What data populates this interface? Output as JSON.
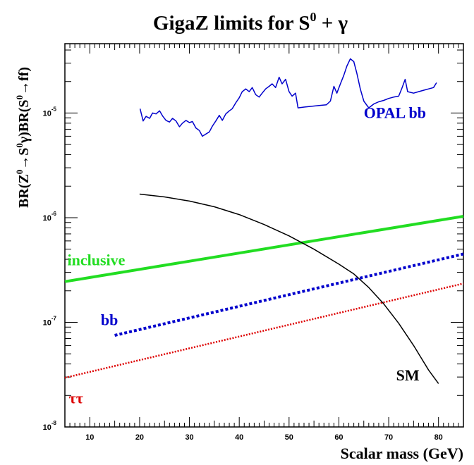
{
  "chart_data": {
    "type": "line",
    "title": "GigaZ limits for S",
    "title_sup": "0",
    "title_tail": " + γ",
    "xlabel": "Scalar mass (GeV)",
    "ylabel_parts": [
      {
        "t": "BR(Z",
        "s": false
      },
      {
        "t": "0",
        "s": true
      },
      {
        "t": "→S",
        "s": false
      },
      {
        "t": "0",
        "s": true
      },
      {
        "t": "γ)BR(S",
        "s": false
      },
      {
        "t": "0",
        "s": true
      },
      {
        "t": "→ff)",
        "s": false
      }
    ],
    "xlim": [
      5,
      85
    ],
    "ylim": [
      1e-08,
      4.6e-05
    ],
    "yscale": "log",
    "grid": false,
    "x_ticks": [
      10,
      20,
      30,
      40,
      50,
      60,
      70,
      80
    ],
    "x_tick_labels": [
      "10",
      "20",
      "30",
      "40",
      "50",
      "60",
      "70",
      "80"
    ],
    "y_ticks": [
      {
        "value": 1e-08,
        "base": "10",
        "exp": "-8"
      },
      {
        "value": 1e-07,
        "base": "10",
        "exp": "-7"
      },
      {
        "value": 1e-06,
        "base": "10",
        "exp": "-6"
      },
      {
        "value": 1e-05,
        "base": "10",
        "exp": "-5"
      }
    ],
    "series": [
      {
        "name": "OPAL bb",
        "color": "#0000cc",
        "dash": "solid",
        "width": 1.5,
        "label_xy": [
          65,
          1e-05
        ],
        "points": [
          [
            20.1,
            1.1e-05
          ],
          [
            20.7,
            8.4e-06
          ],
          [
            21.3,
            9.3e-06
          ],
          [
            22.0,
            8.9e-06
          ],
          [
            22.6,
            1e-05
          ],
          [
            23.3,
            9.8e-06
          ],
          [
            24.0,
            1.05e-05
          ],
          [
            24.6,
            9.4e-06
          ],
          [
            25.3,
            8.5e-06
          ],
          [
            26.0,
            8.2e-06
          ],
          [
            26.6,
            8.9e-06
          ],
          [
            27.3,
            8.4e-06
          ],
          [
            28.0,
            7.4e-06
          ],
          [
            28.6,
            8e-06
          ],
          [
            29.3,
            8.5e-06
          ],
          [
            30.0,
            8.1e-06
          ],
          [
            30.6,
            8.3e-06
          ],
          [
            31.3,
            7.2e-06
          ],
          [
            32.0,
            6.8e-06
          ],
          [
            32.6,
            6e-06
          ],
          [
            33.3,
            6.3e-06
          ],
          [
            34.0,
            6.6e-06
          ],
          [
            34.6,
            7.5e-06
          ],
          [
            35.3,
            8.4e-06
          ],
          [
            36.0,
            9.5e-06
          ],
          [
            36.6,
            8.5e-06
          ],
          [
            37.3,
            9.8e-06
          ],
          [
            38.0,
            1.05e-05
          ],
          [
            38.6,
            1.1e-05
          ],
          [
            39.3,
            1.25e-05
          ],
          [
            40.0,
            1.4e-05
          ],
          [
            40.6,
            1.6e-05
          ],
          [
            41.3,
            1.7e-05
          ],
          [
            42.0,
            1.6e-05
          ],
          [
            42.6,
            1.75e-05
          ],
          [
            43.3,
            1.5e-05
          ],
          [
            44.0,
            1.42e-05
          ],
          [
            44.6,
            1.55e-05
          ],
          [
            45.3,
            1.7e-05
          ],
          [
            46.0,
            1.8e-05
          ],
          [
            46.6,
            1.9e-05
          ],
          [
            47.3,
            1.75e-05
          ],
          [
            48.0,
            2.2e-05
          ],
          [
            48.6,
            1.9e-05
          ],
          [
            49.3,
            2.1e-05
          ],
          [
            50.0,
            1.6e-05
          ],
          [
            50.6,
            1.45e-05
          ],
          [
            51.3,
            1.55e-05
          ],
          [
            51.8,
            1.12e-05
          ],
          [
            53.0,
            1.14e-05
          ],
          [
            54.5,
            1.16e-05
          ],
          [
            56.0,
            1.18e-05
          ],
          [
            57.5,
            1.2e-05
          ],
          [
            58.3,
            1.3e-05
          ],
          [
            59.0,
            1.8e-05
          ],
          [
            59.6,
            1.55e-05
          ],
          [
            60.3,
            1.9e-05
          ],
          [
            61.0,
            2.3e-05
          ],
          [
            61.6,
            2.8e-05
          ],
          [
            62.3,
            3.3e-05
          ],
          [
            63.0,
            3.1e-05
          ],
          [
            63.6,
            2.4e-05
          ],
          [
            64.3,
            1.7e-05
          ],
          [
            65.0,
            1.3e-05
          ],
          [
            66.0,
            1.12e-05
          ],
          [
            67.0,
            1.22e-05
          ],
          [
            68.0,
            1.28e-05
          ],
          [
            69.0,
            1.32e-05
          ],
          [
            70.0,
            1.38e-05
          ],
          [
            71.0,
            1.42e-05
          ],
          [
            72.0,
            1.45e-05
          ],
          [
            72.6,
            1.7e-05
          ],
          [
            73.3,
            2.1e-05
          ],
          [
            73.8,
            1.6e-05
          ],
          [
            75.0,
            1.55e-05
          ],
          [
            76.0,
            1.6e-05
          ],
          [
            77.0,
            1.65e-05
          ],
          [
            78.0,
            1.7e-05
          ],
          [
            79.0,
            1.75e-05
          ],
          [
            79.6,
            1.95e-05
          ]
        ]
      },
      {
        "name": "inclusive",
        "color": "#22dd22",
        "dash": "solid",
        "width": 4,
        "label_xy": [
          5.5,
          3.9e-07
        ],
        "points": [
          [
            5,
            2.45e-07
          ],
          [
            85,
            1.03e-06
          ]
        ]
      },
      {
        "name": "bb",
        "color": "#0000cc",
        "dash": "dot",
        "width": 4,
        "label_xy": [
          12.2,
          1.05e-07
        ],
        "points": [
          [
            15,
            7.5e-08
          ],
          [
            85,
            4.5e-07
          ]
        ]
      },
      {
        "name": "ττ",
        "color": "#dd0000",
        "dash": "dotfine",
        "width": 2.5,
        "label_xy": [
          5.8,
          1.87e-08
        ],
        "points": [
          [
            5,
            2.95e-08
          ],
          [
            85,
            2.35e-07
          ]
        ]
      },
      {
        "name": "SM",
        "color": "#000000",
        "dash": "solid",
        "width": 1.5,
        "label_xy": [
          71.5,
          3.1e-08
        ],
        "points": [
          [
            20,
            1.68e-06
          ],
          [
            25,
            1.58e-06
          ],
          [
            30,
            1.44e-06
          ],
          [
            35,
            1.27e-06
          ],
          [
            40,
            1.07e-06
          ],
          [
            45,
            8.6e-07
          ],
          [
            50,
            6.7e-07
          ],
          [
            55,
            5e-07
          ],
          [
            60,
            3.6e-07
          ],
          [
            63,
            2.9e-07
          ],
          [
            66,
            2.15e-07
          ],
          [
            69,
            1.5e-07
          ],
          [
            72,
            9.8e-08
          ],
          [
            75,
            6e-08
          ],
          [
            78,
            3.5e-08
          ],
          [
            80,
            2.6e-08
          ]
        ]
      }
    ]
  }
}
